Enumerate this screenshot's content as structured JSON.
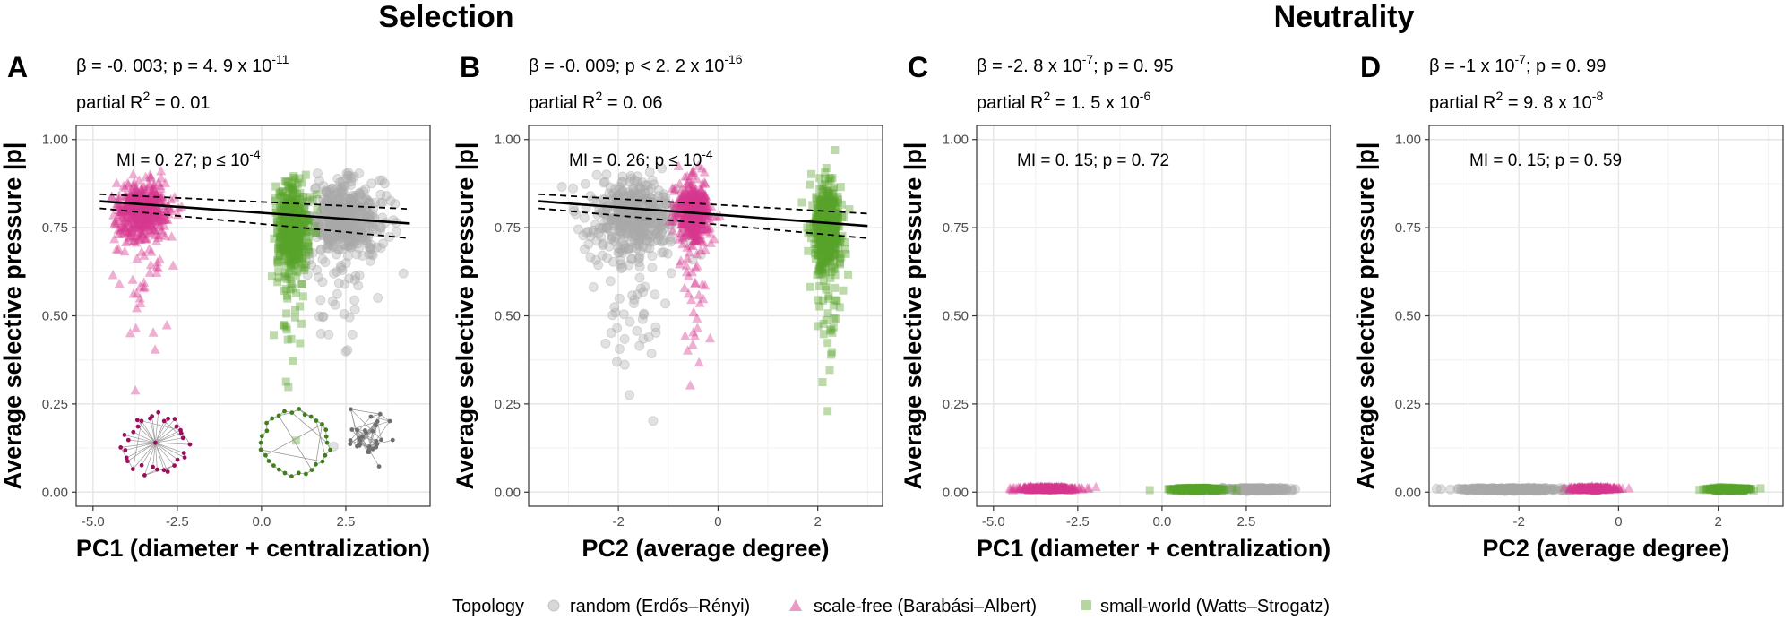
{
  "section_titles": [
    "Selection",
    "Neutrality"
  ],
  "legend": {
    "title": "Topology",
    "items": [
      {
        "label": "random (Erdős–Rényi)",
        "shape": "circle",
        "color": "#a9a9a9"
      },
      {
        "label": "scale-free (Barabási–Albert)",
        "shape": "triangle",
        "color": "#d6368f"
      },
      {
        "label": "small-world (Watts–Strogatz)",
        "shape": "square",
        "color": "#58a32a"
      }
    ]
  },
  "chart_data": [
    {
      "panel": "A",
      "type": "scatter",
      "xlabel": "PC1 (diameter + centralization)",
      "ylabel": "Average selective pressure |p|",
      "xlim": [
        -5.5,
        5.0
      ],
      "ylim": [
        -0.04,
        1.04
      ],
      "xticks": [
        -5.0,
        -2.5,
        0.0,
        2.5
      ],
      "xtick_labels": [
        "-5.0",
        "-2.5",
        "0.0",
        "2.5"
      ],
      "yticks": [
        0.0,
        0.25,
        0.5,
        0.75,
        1.0
      ],
      "ytick_labels": [
        "0.00",
        "0.25",
        "0.50",
        "0.75",
        "1.00"
      ],
      "stats": {
        "beta": "β = -0. 003; p = 4. 9 x 10",
        "beta_exp": "-11",
        "r2": "partial R",
        "r2_sup": "2",
        "r2_val": " = 0. 01",
        "r2_exp": ""
      },
      "mi": {
        "text": "MI = 0. 27; p  ≤  10",
        "exp": "-4"
      },
      "regression": {
        "x": [
          -4.8,
          4.4
        ],
        "y": [
          0.825,
          0.762
        ],
        "ci_upper": [
          0.845,
          0.803
        ],
        "ci_lower": [
          0.805,
          0.72
        ]
      },
      "clusters": [
        {
          "topology": "random",
          "x_center": 2.5,
          "x_spread": 1.0,
          "y_center": 0.78,
          "y_spread": 0.05,
          "n": 500
        },
        {
          "topology": "scale-free",
          "x_center": -3.5,
          "x_spread": 0.7,
          "y_center": 0.8,
          "y_spread": 0.04,
          "n": 500
        },
        {
          "topology": "small-world",
          "x_center": 0.9,
          "x_spread": 0.45,
          "y_center": 0.75,
          "y_spread": 0.06,
          "n": 500
        }
      ],
      "insets": true
    },
    {
      "panel": "B",
      "type": "scatter",
      "xlabel": "PC2 (average degree)",
      "ylabel": "Average selective pressure |p|",
      "xlim": [
        -3.8,
        3.3
      ],
      "ylim": [
        -0.04,
        1.04
      ],
      "xticks": [
        -2,
        0,
        2
      ],
      "xtick_labels": [
        "-2",
        "0",
        "2"
      ],
      "yticks": [
        0.0,
        0.25,
        0.5,
        0.75,
        1.0
      ],
      "ytick_labels": [
        "0.00",
        "0.25",
        "0.50",
        "0.75",
        "1.00"
      ],
      "stats": {
        "beta": "β = -0. 009; p < 2. 2 x 10",
        "beta_exp": "-16",
        "r2": "partial R",
        "r2_sup": "2",
        "r2_val": " = 0. 06",
        "r2_exp": ""
      },
      "mi": {
        "text": "MI = 0. 26; p  ≤  10",
        "exp": "-4"
      },
      "regression": {
        "x": [
          -3.6,
          3.0
        ],
        "y": [
          0.825,
          0.755
        ],
        "ci_upper": [
          0.845,
          0.79
        ],
        "ci_lower": [
          0.805,
          0.72
        ]
      },
      "clusters": [
        {
          "topology": "random",
          "x_center": -1.7,
          "x_spread": 0.8,
          "y_center": 0.78,
          "y_spread": 0.05,
          "n": 500
        },
        {
          "topology": "scale-free",
          "x_center": -0.5,
          "x_spread": 0.3,
          "y_center": 0.8,
          "y_spread": 0.04,
          "n": 500
        },
        {
          "topology": "small-world",
          "x_center": 2.2,
          "x_spread": 0.25,
          "y_center": 0.75,
          "y_spread": 0.06,
          "n": 500
        }
      ],
      "insets": false
    },
    {
      "panel": "C",
      "type": "scatter",
      "xlabel": "PC1 (diameter + centralization)",
      "ylabel": "Average selective pressure |p|",
      "xlim": [
        -5.5,
        5.0
      ],
      "ylim": [
        -0.04,
        1.04
      ],
      "xticks": [
        -5.0,
        -2.5,
        0.0,
        2.5
      ],
      "xtick_labels": [
        "-5.0",
        "-2.5",
        "0.0",
        "2.5"
      ],
      "yticks": [
        0.0,
        0.25,
        0.5,
        0.75,
        1.0
      ],
      "ytick_labels": [
        "0.00",
        "0.25",
        "0.50",
        "0.75",
        "1.00"
      ],
      "stats": {
        "beta": "β = -2. 8 x 10",
        "beta_exp": "-7",
        "beta_tail": "; p = 0. 95",
        "r2": "partial R",
        "r2_sup": "2",
        "r2_val": " = 1. 5 x 10",
        "r2_exp": "-6"
      },
      "mi": {
        "text": "MI = 0. 15; p = 0. 72",
        "exp": ""
      },
      "regression": null,
      "clusters": [
        {
          "topology": "random",
          "x_center": 2.8,
          "x_spread": 0.8,
          "y_center": 0.008,
          "y_spread": 0.002,
          "n": 300
        },
        {
          "topology": "scale-free",
          "x_center": -3.4,
          "x_spread": 0.8,
          "y_center": 0.01,
          "y_spread": 0.002,
          "n": 400
        },
        {
          "topology": "small-world",
          "x_center": 1.0,
          "x_spread": 0.6,
          "y_center": 0.008,
          "y_spread": 0.002,
          "n": 400
        }
      ],
      "insets": false
    },
    {
      "panel": "D",
      "type": "scatter",
      "xlabel": "PC2 (average degree)",
      "ylabel": "Average selective pressure |p|",
      "xlim": [
        -3.8,
        3.3
      ],
      "ylim": [
        -0.04,
        1.04
      ],
      "xticks": [
        -2,
        0,
        2
      ],
      "xtick_labels": [
        "-2",
        "0",
        "2"
      ],
      "yticks": [
        0.0,
        0.25,
        0.5,
        0.75,
        1.0
      ],
      "ytick_labels": [
        "0.00",
        "0.25",
        "0.50",
        "0.75",
        "1.00"
      ],
      "stats": {
        "beta": "β = -1 x 10",
        "beta_exp": "-7",
        "beta_tail": "; p = 0. 99",
        "r2": "partial R",
        "r2_sup": "2",
        "r2_val": " = 9. 8 x 10",
        "r2_exp": "-8"
      },
      "mi": {
        "text": "MI = 0. 15; p = 0. 59",
        "exp": ""
      },
      "regression": null,
      "clusters": [
        {
          "topology": "random",
          "x_center": -2.2,
          "x_spread": 0.9,
          "y_center": 0.008,
          "y_spread": 0.002,
          "n": 400
        },
        {
          "topology": "scale-free",
          "x_center": -0.5,
          "x_spread": 0.4,
          "y_center": 0.01,
          "y_spread": 0.002,
          "n": 300
        },
        {
          "topology": "small-world",
          "x_center": 2.2,
          "x_spread": 0.35,
          "y_center": 0.008,
          "y_spread": 0.002,
          "n": 300
        }
      ],
      "insets": false
    }
  ]
}
